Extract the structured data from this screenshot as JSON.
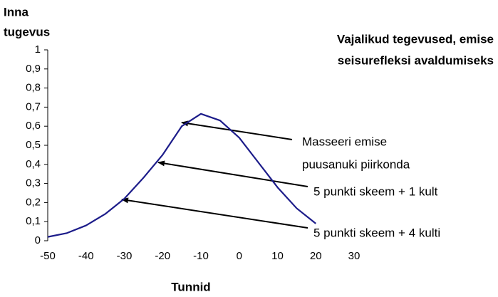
{
  "chart_data": {
    "type": "line",
    "title": [
      "Vajalikud tegevused, emise",
      "seisurefleksi avaldumiseks"
    ],
    "y_label": [
      "Inna",
      "tugevus"
    ],
    "x_label": "Tunnid",
    "x": [
      -50,
      -45,
      -40,
      -35,
      -30,
      -25,
      -20,
      -15,
      -10,
      -5,
      0,
      5,
      10,
      15,
      20
    ],
    "series": [
      {
        "color": "#1c1c8a",
        "values": [
          0.02,
          0.04,
          0.08,
          0.14,
          0.22,
          0.33,
          0.45,
          0.6,
          0.665,
          0.63,
          0.54,
          0.41,
          0.28,
          0.17,
          0.09
        ]
      }
    ],
    "xlim": [
      -50,
      30
    ],
    "xticks": [
      -50,
      -40,
      -30,
      -20,
      -10,
      0,
      10,
      20,
      30
    ],
    "ylim": [
      0,
      1
    ],
    "yticks": [
      0,
      {
        "value": 0.1,
        "label": "0,1"
      },
      {
        "value": 0.2,
        "label": "0,2"
      },
      {
        "value": 0.3,
        "label": "0,3"
      },
      {
        "value": 0.4,
        "label": "0,4"
      },
      {
        "value": 0.5,
        "label": "0,5"
      },
      {
        "value": 0.6,
        "label": "0,6"
      },
      {
        "value": 0.7,
        "label": "0,7"
      },
      {
        "value": 0.8,
        "label": "0,8"
      },
      {
        "value": 0.9,
        "label": "0,9"
      },
      1
    ],
    "annotations": [
      [
        "Masseeri emise",
        "puusanuki piirkonda"
      ],
      [
        "5 punkti skeem + 1 kult"
      ],
      [
        "5 punkti skeem + 4 kulti"
      ]
    ]
  }
}
